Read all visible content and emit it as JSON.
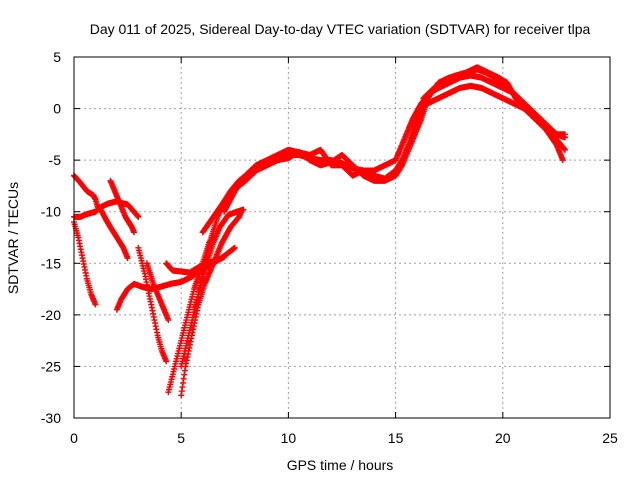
{
  "chart_data": {
    "type": "scatter",
    "title": "Day 011 of 2025, Sidereal Day-to-day VTEC variation (SDTVAR) for receiver tlpa",
    "xlabel": "GPS time / hours",
    "ylabel": "SDTVAR / TECUs",
    "xlim": [
      0,
      25
    ],
    "ylim": [
      -30,
      5
    ],
    "xticks": [
      0,
      5,
      10,
      15,
      20,
      25
    ],
    "yticks": [
      5,
      0,
      -5,
      -10,
      -15,
      -20,
      -25,
      -30
    ],
    "grid": true,
    "marker": "plus",
    "color": "#ff0000",
    "series": [
      {
        "name": "arc-1",
        "points": [
          [
            0.0,
            -11.0
          ],
          [
            0.2,
            -12.5
          ],
          [
            0.4,
            -14.5
          ],
          [
            0.6,
            -16.5
          ],
          [
            0.8,
            -18.0
          ],
          [
            1.0,
            -19.0
          ]
        ]
      },
      {
        "name": "arc-2",
        "points": [
          [
            0.0,
            -6.5
          ],
          [
            0.3,
            -7.2
          ],
          [
            0.6,
            -8.0
          ],
          [
            0.9,
            -8.4
          ],
          [
            1.0,
            -8.8
          ],
          [
            1.1,
            -9.5
          ],
          [
            1.3,
            -10.0
          ],
          [
            1.5,
            -10.8
          ],
          [
            1.7,
            -11.5
          ],
          [
            2.0,
            -12.5
          ],
          [
            2.3,
            -13.5
          ],
          [
            2.5,
            -14.5
          ]
        ]
      },
      {
        "name": "arc-3",
        "points": [
          [
            0.0,
            -10.5
          ],
          [
            0.3,
            -10.5
          ],
          [
            0.5,
            -10.3
          ],
          [
            1.0,
            -10.0
          ],
          [
            1.3,
            -9.5
          ],
          [
            1.6,
            -9.2
          ],
          [
            2.0,
            -9.0
          ],
          [
            2.3,
            -9.2
          ],
          [
            2.5,
            -9.3
          ],
          [
            2.8,
            -10.0
          ],
          [
            3.0,
            -10.5
          ]
        ]
      },
      {
        "name": "arc-4",
        "points": [
          [
            1.7,
            -7.0
          ],
          [
            2.0,
            -8.5
          ],
          [
            2.2,
            -9.5
          ],
          [
            2.4,
            -10.5
          ],
          [
            2.7,
            -11.5
          ],
          [
            2.8,
            -12.0
          ]
        ]
      },
      {
        "name": "arc-5",
        "points": [
          [
            2.0,
            -19.5
          ],
          [
            2.2,
            -18.5
          ],
          [
            2.5,
            -17.5
          ],
          [
            2.8,
            -17.0
          ],
          [
            3.2,
            -17.3
          ],
          [
            3.6,
            -17.5
          ],
          [
            4.0,
            -17.3
          ],
          [
            4.5,
            -17.0
          ],
          [
            5.0,
            -16.8
          ],
          [
            5.5,
            -16.3
          ],
          [
            6.0,
            -15.5
          ],
          [
            6.5,
            -15.0
          ],
          [
            7.0,
            -14.3
          ],
          [
            7.5,
            -13.5
          ]
        ]
      },
      {
        "name": "arc-6",
        "points": [
          [
            3.0,
            -13.5
          ],
          [
            3.3,
            -16.0
          ],
          [
            3.6,
            -19.0
          ],
          [
            3.9,
            -22.0
          ],
          [
            4.1,
            -23.5
          ],
          [
            4.3,
            -24.5
          ]
        ]
      },
      {
        "name": "arc-7",
        "points": [
          [
            3.4,
            -15.0
          ],
          [
            3.7,
            -17.0
          ],
          [
            4.0,
            -18.5
          ],
          [
            4.2,
            -19.5
          ],
          [
            4.4,
            -20.5
          ]
        ]
      },
      {
        "name": "arc-8",
        "points": [
          [
            4.3,
            -15.0
          ],
          [
            4.6,
            -15.7
          ],
          [
            5.0,
            -15.8
          ],
          [
            5.4,
            -15.9
          ],
          [
            5.8,
            -15.4
          ],
          [
            6.2,
            -14.9
          ],
          [
            6.6,
            -14.8
          ],
          [
            7.0,
            -14.4
          ]
        ]
      },
      {
        "name": "arc-9",
        "points": [
          [
            4.4,
            -27.5
          ],
          [
            4.7,
            -25.0
          ],
          [
            5.0,
            -22.5
          ],
          [
            5.3,
            -20.0
          ],
          [
            5.6,
            -17.5
          ],
          [
            6.0,
            -15.0
          ],
          [
            6.3,
            -13.0
          ],
          [
            6.5,
            -12.5
          ]
        ]
      },
      {
        "name": "arc-10",
        "points": [
          [
            5.0,
            -27.8
          ],
          [
            5.2,
            -25.0
          ],
          [
            5.5,
            -22.0
          ],
          [
            5.8,
            -19.0
          ],
          [
            6.1,
            -17.0
          ],
          [
            6.5,
            -15.0
          ],
          [
            6.9,
            -13.0
          ],
          [
            7.3,
            -11.5
          ],
          [
            7.7,
            -10.5
          ],
          [
            7.8,
            -10.0
          ]
        ]
      },
      {
        "name": "arc-11",
        "points": [
          [
            5.0,
            -25.0
          ],
          [
            5.4,
            -21.5
          ],
          [
            5.8,
            -18.0
          ],
          [
            6.2,
            -15.0
          ],
          [
            6.5,
            -13.0
          ],
          [
            6.8,
            -11.5
          ],
          [
            7.2,
            -10.3
          ],
          [
            7.6,
            -10.0
          ],
          [
            7.9,
            -9.8
          ]
        ]
      },
      {
        "name": "arc-12",
        "points": [
          [
            5.6,
            -20.0
          ],
          [
            6.0,
            -16.0
          ],
          [
            6.4,
            -12.5
          ],
          [
            6.7,
            -10.5
          ],
          [
            7.0,
            -9.0
          ],
          [
            7.3,
            -8.0
          ],
          [
            7.7,
            -7.0
          ],
          [
            8.0,
            -6.5
          ],
          [
            8.5,
            -5.5
          ],
          [
            9.0,
            -5.2
          ],
          [
            9.5,
            -5.0
          ],
          [
            10.0,
            -4.5
          ],
          [
            10.5,
            -4.5
          ],
          [
            11.0,
            -4.8
          ],
          [
            11.5,
            -5.0
          ],
          [
            12.0,
            -5.0
          ],
          [
            12.5,
            -5.3
          ],
          [
            13.0,
            -5.8
          ],
          [
            13.5,
            -6.0
          ],
          [
            14.0,
            -6.5
          ],
          [
            14.5,
            -6.8
          ],
          [
            15.0,
            -6.0
          ],
          [
            15.3,
            -5.0
          ],
          [
            15.6,
            -3.5
          ],
          [
            15.9,
            -1.5
          ],
          [
            16.2,
            0.0
          ],
          [
            16.5,
            0.5
          ],
          [
            17.0,
            1.0
          ],
          [
            17.5,
            1.5
          ],
          [
            18.0,
            2.0
          ],
          [
            18.5,
            2.2
          ],
          [
            19.0,
            2.0
          ],
          [
            19.5,
            1.5
          ],
          [
            20.0,
            1.0
          ],
          [
            20.5,
            0.5
          ],
          [
            21.0,
            0.0
          ],
          [
            21.5,
            -1.0
          ],
          [
            22.0,
            -2.0
          ],
          [
            22.5,
            -3.5
          ],
          [
            22.8,
            -5.0
          ]
        ]
      },
      {
        "name": "arc-13",
        "points": [
          [
            6.0,
            -12.0
          ],
          [
            6.5,
            -10.5
          ],
          [
            7.0,
            -9.0
          ],
          [
            7.5,
            -7.8
          ],
          [
            8.0,
            -7.0
          ],
          [
            8.5,
            -6.0
          ],
          [
            9.0,
            -5.5
          ],
          [
            9.5,
            -5.0
          ],
          [
            10.0,
            -4.8
          ],
          [
            10.5,
            -4.2
          ],
          [
            11.0,
            -5.0
          ],
          [
            11.5,
            -5.5
          ],
          [
            12.0,
            -5.2
          ],
          [
            12.5,
            -4.5
          ],
          [
            13.0,
            -5.5
          ],
          [
            13.5,
            -6.5
          ],
          [
            14.0,
            -7.0
          ],
          [
            14.5,
            -7.0
          ],
          [
            15.0,
            -6.5
          ],
          [
            15.3,
            -5.5
          ],
          [
            15.6,
            -4.0
          ],
          [
            15.9,
            -2.5
          ],
          [
            16.2,
            -1.0
          ],
          [
            16.5,
            1.0
          ],
          [
            17.0,
            2.5
          ],
          [
            17.5,
            3.0
          ],
          [
            18.0,
            3.2
          ],
          [
            18.5,
            3.5
          ],
          [
            18.8,
            3.8
          ],
          [
            19.2,
            3.5
          ],
          [
            19.6,
            3.0
          ],
          [
            20.0,
            2.5
          ],
          [
            20.5,
            1.5
          ],
          [
            21.0,
            0.5
          ],
          [
            21.5,
            -0.5
          ],
          [
            22.0,
            -1.5
          ],
          [
            22.5,
            -2.5
          ],
          [
            22.9,
            -2.8
          ]
        ]
      },
      {
        "name": "arc-14",
        "points": [
          [
            7.0,
            -10.0
          ],
          [
            7.5,
            -8.0
          ],
          [
            8.0,
            -6.5
          ],
          [
            8.5,
            -5.5
          ],
          [
            9.0,
            -5.0
          ],
          [
            10.0,
            -4.0
          ],
          [
            11.0,
            -4.5
          ],
          [
            11.5,
            -4.0
          ],
          [
            12.0,
            -5.5
          ],
          [
            12.5,
            -5.5
          ],
          [
            13.0,
            -6.5
          ],
          [
            13.3,
            -6.2
          ],
          [
            13.6,
            -6.0
          ],
          [
            14.0,
            -6.0
          ],
          [
            14.5,
            -5.5
          ],
          [
            15.0,
            -5.0
          ],
          [
            15.4,
            -3.0
          ],
          [
            15.8,
            -1.0
          ],
          [
            16.2,
            0.5
          ],
          [
            16.6,
            1.5
          ],
          [
            17.0,
            2.0
          ],
          [
            17.5,
            2.5
          ],
          [
            18.0,
            3.0
          ],
          [
            18.5,
            3.2
          ],
          [
            19.0,
            3.0
          ],
          [
            19.5,
            2.5
          ],
          [
            20.0,
            2.0
          ],
          [
            20.5,
            1.5
          ],
          [
            21.0,
            0.5
          ],
          [
            21.5,
            -0.5
          ],
          [
            22.0,
            -1.5
          ],
          [
            22.5,
            -2.5
          ],
          [
            22.9,
            -2.5
          ]
        ]
      },
      {
        "name": "arc-15",
        "points": [
          [
            16.3,
            1.0
          ],
          [
            16.8,
            2.0
          ],
          [
            17.3,
            2.8
          ],
          [
            17.8,
            3.2
          ],
          [
            18.3,
            3.5
          ],
          [
            18.8,
            4.0
          ],
          [
            19.3,
            3.5
          ],
          [
            19.8,
            3.0
          ],
          [
            20.2,
            2.5
          ],
          [
            20.6,
            1.0
          ],
          [
            21.0,
            0.0
          ],
          [
            21.5,
            -0.8
          ],
          [
            22.0,
            -2.0
          ],
          [
            22.5,
            -3.0
          ],
          [
            22.9,
            -4.0
          ]
        ]
      }
    ]
  }
}
